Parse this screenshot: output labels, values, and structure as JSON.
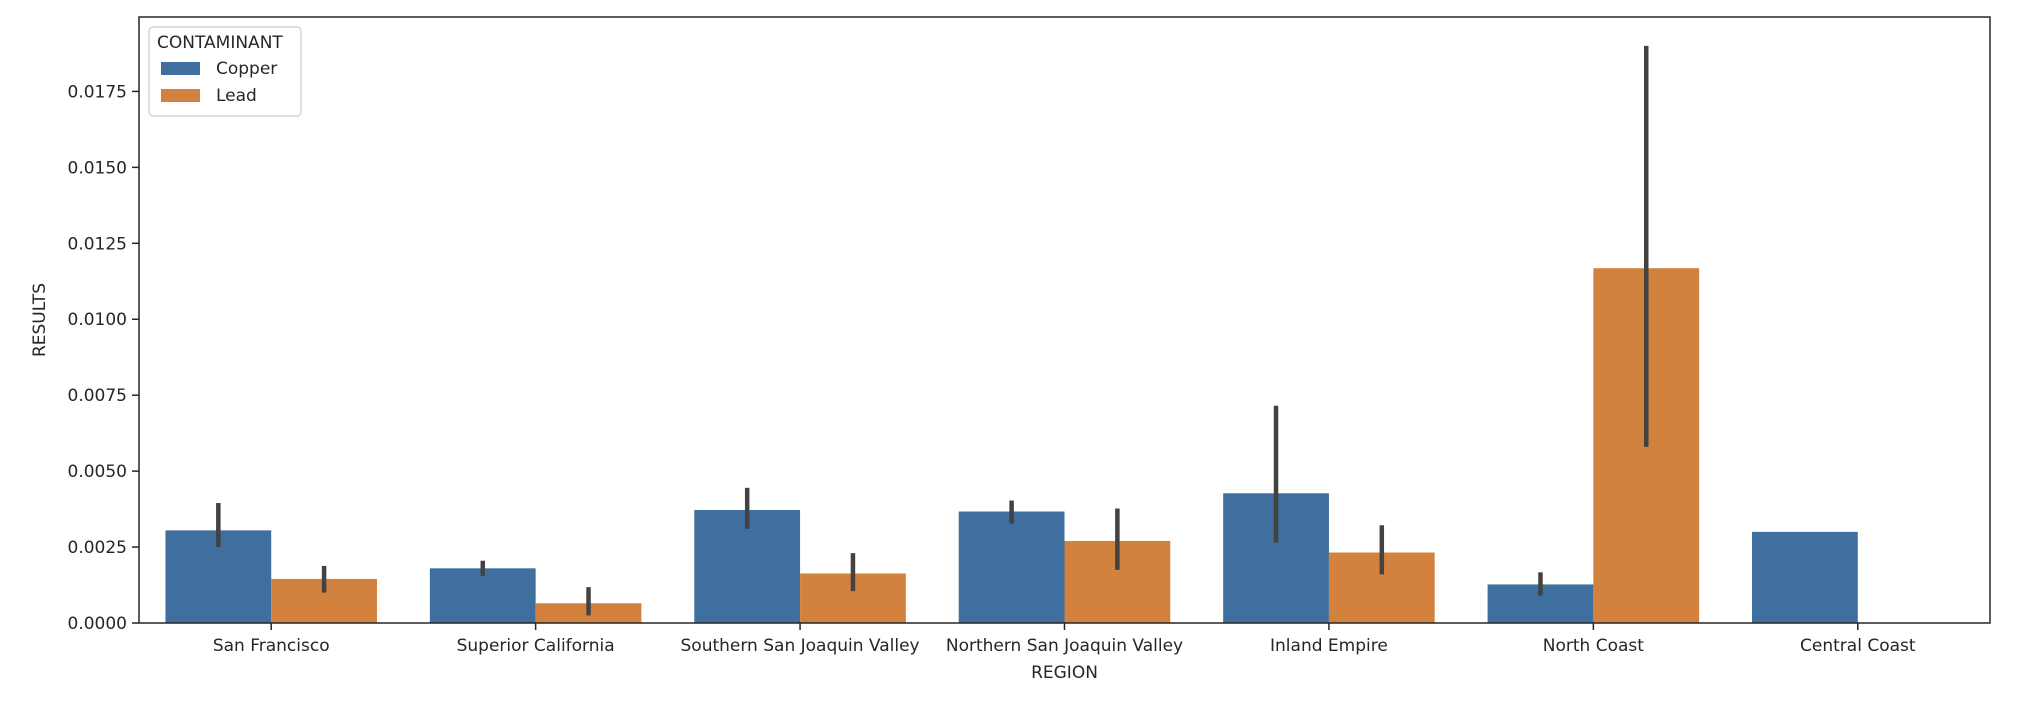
{
  "chart_data": {
    "type": "bar",
    "xlabel": "REGION",
    "ylabel": "RESULTS",
    "ylim": [
      0,
      0.02
    ],
    "yticks": [
      "0.0000",
      "0.0025",
      "0.0050",
      "0.0075",
      "0.0100",
      "0.0125",
      "0.0150",
      "0.0175"
    ],
    "grid": false,
    "legend": {
      "title": "CONTAMINANT",
      "position": "top-left"
    },
    "categories": [
      "San Francisco",
      "Superior California",
      "Southern San Joaquin Valley",
      "Northern San Joaquin Valley",
      "Inland Empire",
      "North Coast",
      "Central Coast"
    ],
    "series": [
      {
        "name": "Copper",
        "color": "#3e6f9e",
        "values": [
          0.00305,
          0.0018,
          0.00372,
          0.00367,
          0.00427,
          0.00127,
          0.003
        ],
        "ci_low": [
          0.0025,
          0.00155,
          0.0031,
          0.00327,
          0.00265,
          0.0009,
          null
        ],
        "ci_high": [
          0.00395,
          0.00205,
          0.00445,
          0.00403,
          0.00715,
          0.00167,
          null
        ]
      },
      {
        "name": "Lead",
        "color": "#d2823d",
        "values": [
          0.00145,
          0.00065,
          0.00163,
          0.0027,
          0.00232,
          0.01168,
          null
        ],
        "ci_low": [
          0.001,
          0.00025,
          0.00105,
          0.00175,
          0.0016,
          0.0058,
          null
        ],
        "ci_high": [
          0.00188,
          0.00118,
          0.0023,
          0.00377,
          0.00322,
          0.019,
          null
        ]
      }
    ]
  }
}
